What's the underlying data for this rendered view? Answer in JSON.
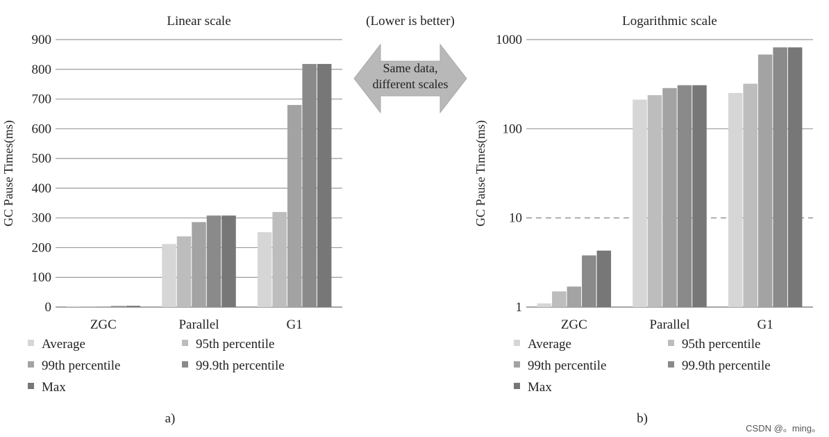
{
  "annotation": {
    "top_note": "(Lower is better)",
    "arrow_text_line1": "Same data,",
    "arrow_text_line2": "different scales"
  },
  "watermark": "CSDN @。ming。",
  "series_colors": [
    "#d6d6d6",
    "#bdbdbd",
    "#a3a3a3",
    "#8a8a8a",
    "#777777"
  ],
  "chart_data": [
    {
      "type": "bar",
      "title": "Linear scale",
      "caption": "a)",
      "ylabel": "GC Pause Times(ms)",
      "xlabel": "",
      "yscale": "linear",
      "ylim": [
        0,
        900
      ],
      "yticks": [
        "0",
        "100",
        "200",
        "300",
        "400",
        "500",
        "600",
        "700",
        "800",
        "900"
      ],
      "grid": true,
      "legend": "bottom",
      "categories": [
        "ZGC",
        "Parallel",
        "G1"
      ],
      "series": [
        {
          "name": "Average",
          "values": [
            1.1,
            212,
            252
          ]
        },
        {
          "name": "95th percentile",
          "values": [
            1.5,
            238,
            320
          ]
        },
        {
          "name": "99th percentile",
          "values": [
            1.7,
            286,
            680
          ]
        },
        {
          "name": "99.9th percentile",
          "values": [
            3.8,
            308,
            818
          ]
        },
        {
          "name": "Max",
          "values": [
            4.3,
            308,
            818
          ]
        }
      ]
    },
    {
      "type": "bar",
      "title": "Logarithmic scale",
      "caption": "b)",
      "ylabel": "GC Pause Times(ms)",
      "xlabel": "",
      "yscale": "log",
      "ylim": [
        1,
        1000
      ],
      "yticks": [
        "1",
        "10",
        "100",
        "1000"
      ],
      "grid": true,
      "legend": "bottom",
      "categories": [
        "ZGC",
        "Parallel",
        "G1"
      ],
      "series": [
        {
          "name": "Average",
          "values": [
            1.1,
            212,
            252
          ]
        },
        {
          "name": "95th percentile",
          "values": [
            1.5,
            238,
            320
          ]
        },
        {
          "name": "99th percentile",
          "values": [
            1.7,
            286,
            680
          ]
        },
        {
          "name": "99.9th percentile",
          "values": [
            3.8,
            308,
            818
          ]
        },
        {
          "name": "Max",
          "values": [
            4.3,
            308,
            818
          ]
        }
      ]
    }
  ]
}
